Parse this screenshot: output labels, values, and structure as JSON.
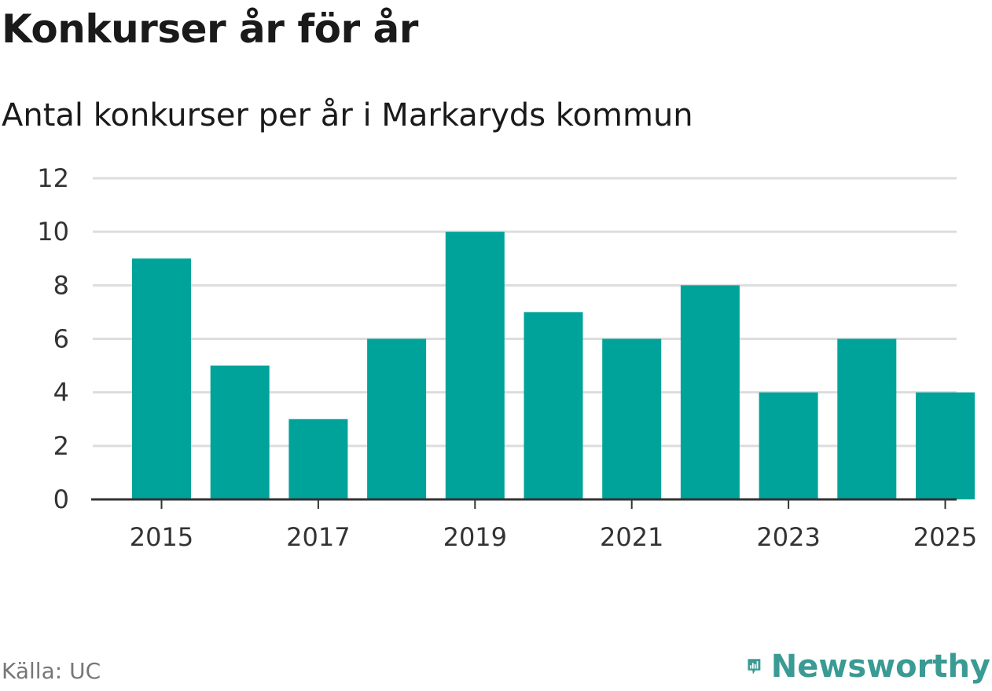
{
  "header": {
    "title": "Konkurser år för år",
    "subtitle": "Antal konkurser per år i Markaryds kommun"
  },
  "footer": {
    "source": "Källa: UC",
    "brand": "Newsworthy",
    "brand_icon": "newsworthy-logo-icon"
  },
  "colors": {
    "bar": "#00a39a",
    "grid": "#dddddd",
    "axis": "#333333",
    "brand": "#3a9a94"
  },
  "chart_data": {
    "type": "bar",
    "title": "Konkurser år för år",
    "subtitle": "Antal konkurser per år i Markaryds kommun",
    "categories": [
      "2015",
      "2016",
      "2017",
      "2018",
      "2019",
      "2020",
      "2021",
      "2022",
      "2023",
      "2024",
      "2025"
    ],
    "values": [
      9,
      5,
      3,
      6,
      10,
      7,
      6,
      8,
      4,
      6,
      4
    ],
    "x_tick_labels": [
      "2015",
      "2017",
      "2019",
      "2021",
      "2023",
      "2025"
    ],
    "y_ticks": [
      0,
      2,
      4,
      6,
      8,
      10,
      12
    ],
    "ylim": [
      0,
      12
    ],
    "xlabel": "",
    "ylabel": "",
    "grid": true,
    "legend": "none"
  }
}
